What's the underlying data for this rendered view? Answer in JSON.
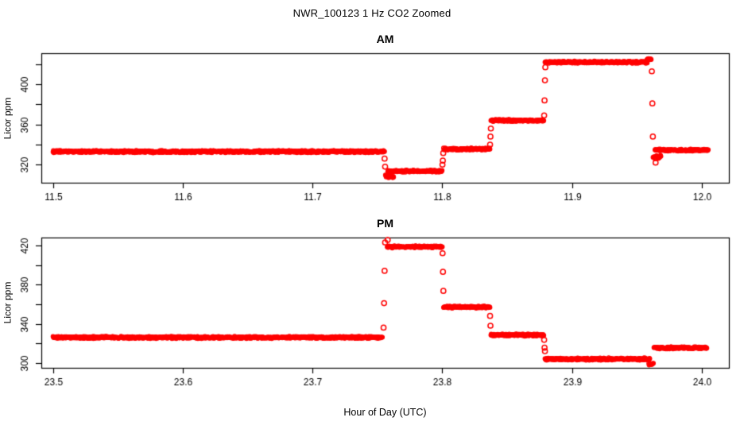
{
  "title": "NWR_100123  1 Hz CO2 Zoomed",
  "xlabel": "Hour of Day (UTC)",
  "colors": {
    "points": "#ff0000",
    "axis": "#000000",
    "text": "#000000",
    "background": "#ffffff"
  },
  "chart_data": [
    {
      "id": "am",
      "type": "scatter",
      "title": "AM",
      "ylabel": "Licor ppm",
      "marker": "open-circle",
      "sample_rate_hz": 1,
      "xlim": [
        11.491,
        12.021
      ],
      "ylim": [
        302,
        431
      ],
      "xticks": [
        11.5,
        11.6,
        11.7,
        11.8,
        11.9,
        12.0
      ],
      "yticks": [
        320,
        340,
        360,
        380,
        400,
        420
      ],
      "ytick_labeled": [
        320,
        360,
        400
      ],
      "segments": [
        {
          "t0": 11.5,
          "t1": 11.7555,
          "value": 333,
          "noise": 1.3
        },
        {
          "t0": 11.7562,
          "t1": 11.7625,
          "value": 308,
          "noise": 2.0
        },
        {
          "t0": 11.758,
          "t1": 11.8,
          "value": 313.5,
          "noise": 1.3
        },
        {
          "t0": 11.801,
          "t1": 11.8367,
          "value": 335.5,
          "noise": 1.3
        },
        {
          "t0": 11.8375,
          "t1": 11.8783,
          "value": 364,
          "noise": 1.3
        },
        {
          "t0": 11.8792,
          "t1": 11.958,
          "value": 422,
          "noise": 1.3
        },
        {
          "t0": 11.9578,
          "t1": 11.9612,
          "value": 425,
          "noise": 1.1
        },
        {
          "t0": 11.9625,
          "t1": 11.9685,
          "value": 328,
          "noise": 2.4
        },
        {
          "t0": 11.964,
          "t1": 12.005,
          "value": 334.5,
          "noise": 1.3
        }
      ],
      "transitions": [
        {
          "t": 11.7556,
          "v": 326
        },
        {
          "t": 11.756,
          "v": 318
        },
        {
          "t": 11.8002,
          "v": 320
        },
        {
          "t": 11.8005,
          "v": 324
        },
        {
          "t": 11.8008,
          "v": 331.5
        },
        {
          "t": 11.8369,
          "v": 340
        },
        {
          "t": 11.8372,
          "v": 348
        },
        {
          "t": 11.8375,
          "v": 356
        },
        {
          "t": 11.8786,
          "v": 369
        },
        {
          "t": 11.8789,
          "v": 384
        },
        {
          "t": 11.8792,
          "v": 404
        },
        {
          "t": 11.8795,
          "v": 417
        },
        {
          "t": 11.9616,
          "v": 413
        },
        {
          "t": 11.962,
          "v": 381
        },
        {
          "t": 11.9624,
          "v": 348
        },
        {
          "t": 11.9645,
          "v": 322
        }
      ]
    },
    {
      "id": "pm",
      "type": "scatter",
      "title": "PM",
      "ylabel": "Licor ppm",
      "marker": "open-circle",
      "sample_rate_hz": 1,
      "xlim": [
        23.491,
        24.021
      ],
      "ylim": [
        295,
        428
      ],
      "xticks": [
        23.5,
        23.6,
        23.7,
        23.8,
        23.9,
        24.0
      ],
      "yticks": [
        300,
        320,
        340,
        360,
        380,
        400,
        420
      ],
      "ytick_labeled": [
        300,
        340,
        380,
        420
      ],
      "segments": [
        {
          "t0": 23.5,
          "t1": 23.754,
          "value": 326,
          "noise": 1.3
        },
        {
          "t0": 23.7576,
          "t1": 23.8,
          "value": 418.5,
          "noise": 1.3
        },
        {
          "t0": 23.801,
          "t1": 23.8367,
          "value": 357,
          "noise": 1.3
        },
        {
          "t0": 23.8375,
          "t1": 23.8783,
          "value": 328.5,
          "noise": 1.3
        },
        {
          "t0": 23.8792,
          "t1": 23.96,
          "value": 304,
          "noise": 1.4
        },
        {
          "t0": 23.9592,
          "t1": 23.9628,
          "value": 299,
          "noise": 1.4
        },
        {
          "t0": 23.9632,
          "t1": 24.004,
          "value": 315.5,
          "noise": 1.3
        }
      ],
      "transitions": [
        {
          "t": 23.7548,
          "v": 336
        },
        {
          "t": 23.7552,
          "v": 361
        },
        {
          "t": 23.7556,
          "v": 394
        },
        {
          "t": 23.756,
          "v": 423
        },
        {
          "t": 23.758,
          "v": 425.5
        },
        {
          "t": 23.8003,
          "v": 412
        },
        {
          "t": 23.8006,
          "v": 393
        },
        {
          "t": 23.8009,
          "v": 373.5
        },
        {
          "t": 23.8369,
          "v": 348
        },
        {
          "t": 23.8372,
          "v": 338
        },
        {
          "t": 23.8786,
          "v": 323.5
        },
        {
          "t": 23.8789,
          "v": 315.5
        },
        {
          "t": 23.8792,
          "v": 312
        }
      ]
    }
  ]
}
